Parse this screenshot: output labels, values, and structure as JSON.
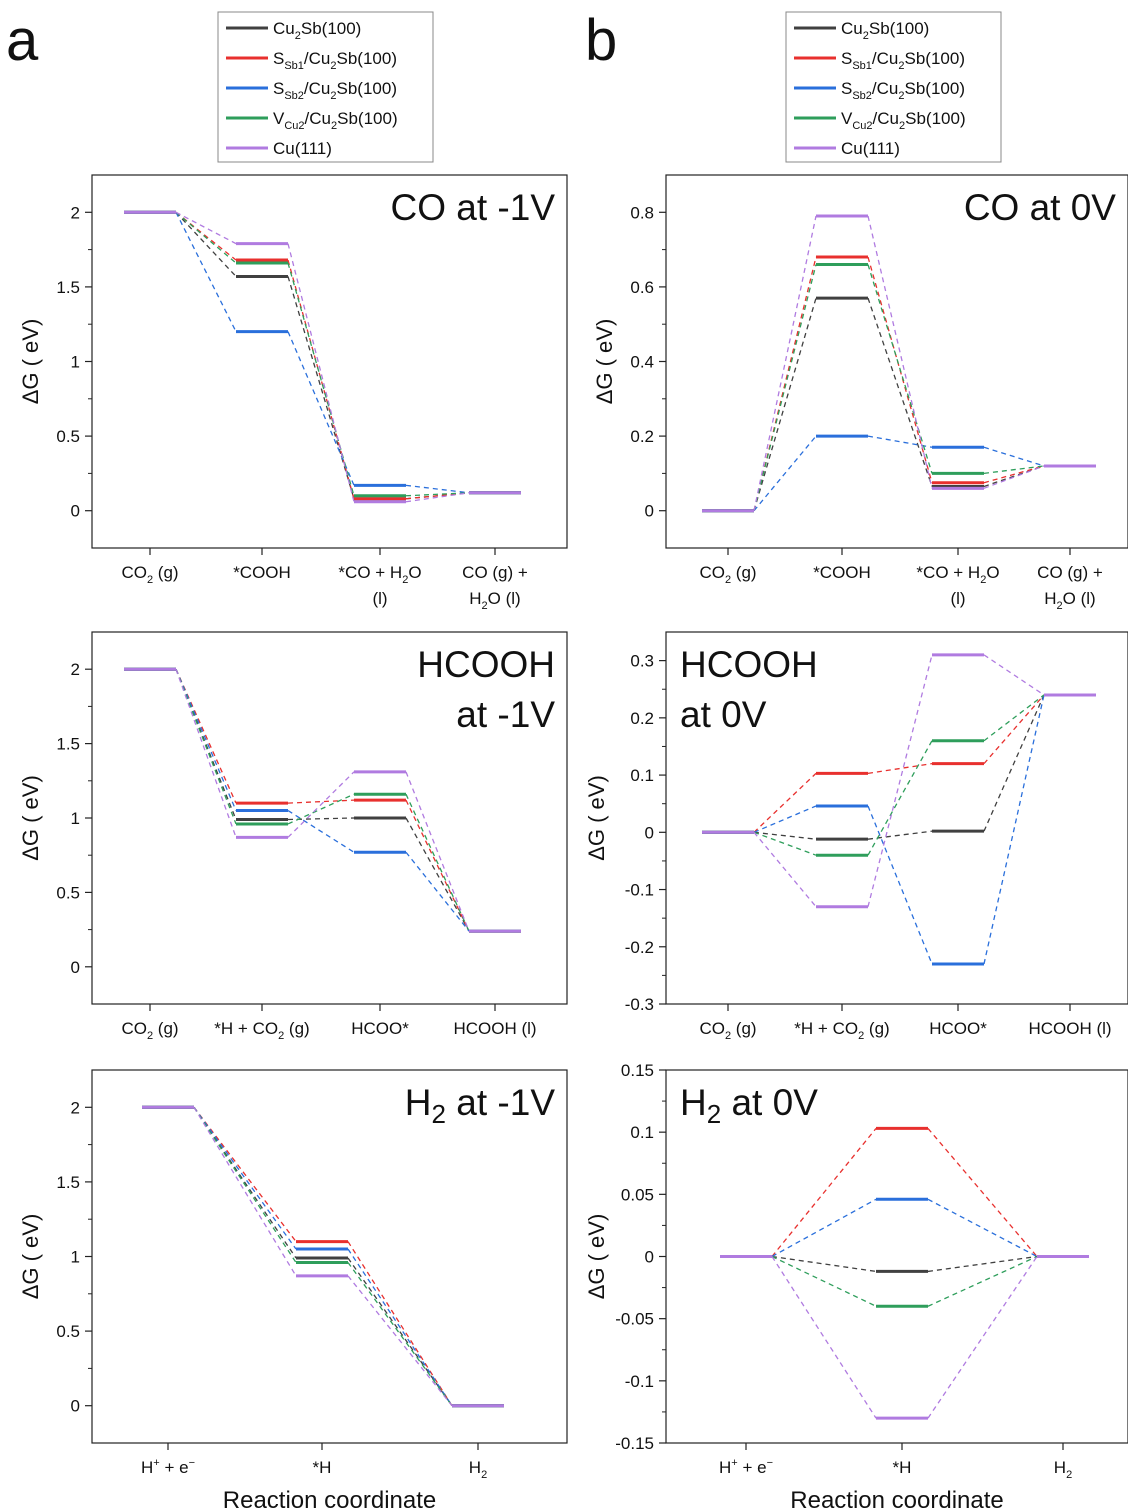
{
  "panel_letters": [
    "a",
    "b"
  ],
  "legend": [
    {
      "html": "Cu<tspan class='sub' dy='5'>2</tspan><tspan dy='-5'>Sb(100)</tspan>",
      "color": "#404040"
    },
    {
      "html": "S<tspan class='sub' dy='5'>Sb1</tspan><tspan dy='-5'>/Cu</tspan><tspan class='sub' dy='5'>2</tspan><tspan dy='-5'>Sb(100)</tspan>",
      "color": "#e8302e"
    },
    {
      "html": "S<tspan class='sub' dy='5'>Sb2</tspan><tspan dy='-5'>/Cu</tspan><tspan class='sub' dy='5'>2</tspan><tspan dy='-5'>Sb(100)</tspan>",
      "color": "#2a6fdb"
    },
    {
      "html": "V<tspan class='sub' dy='5'>Cu2</tspan><tspan dy='-5'>/Cu</tspan><tspan class='sub' dy='5'>2</tspan><tspan dy='-5'>Sb(100)</tspan>",
      "color": "#2e9e5b"
    },
    {
      "html": "Cu(111)",
      "color": "#b07be0"
    }
  ],
  "chart_data": [
    {
      "type": "line",
      "title_lines": [
        "CO at -1V"
      ],
      "ylabel": "ΔG ( eV)",
      "xlabel": "",
      "ylim": [
        -0.25,
        2.25
      ],
      "yticks": [
        0,
        0.5,
        1,
        1.5,
        2
      ],
      "ytick_labels": [
        "0",
        "0.5",
        "1",
        "1.5",
        "2"
      ],
      "categories": [
        [
          "CO<tspan class='sub' dy='5'>2</tspan><tspan dy='-5'> (g)</tspan>"
        ],
        [
          "*COOH"
        ],
        [
          "*CO + H<tspan class='sub' dy='5'>2</tspan><tspan dy='-5'>O</tspan>",
          "(l)"
        ],
        [
          "CO (g) +",
          "H<tspan class='sub' dy='5'>2</tspan><tspan dy='-5'>O (l)</tspan>"
        ]
      ],
      "series": [
        {
          "values": [
            2.0,
            1.57,
            0.08,
            0.12
          ]
        },
        {
          "values": [
            2.0,
            1.68,
            0.08,
            0.12
          ]
        },
        {
          "values": [
            2.0,
            1.2,
            0.17,
            0.12
          ]
        },
        {
          "values": [
            2.0,
            1.66,
            0.1,
            0.12
          ]
        },
        {
          "values": [
            2.0,
            1.79,
            0.06,
            0.12
          ]
        }
      ]
    },
    {
      "type": "line",
      "title_lines": [
        "CO at 0V"
      ],
      "ylabel": "ΔG ( eV)",
      "xlabel": "",
      "ylim": [
        -0.1,
        0.9
      ],
      "yticks": [
        0,
        0.2,
        0.4,
        0.6,
        0.8
      ],
      "ytick_labels": [
        "0",
        "0.2",
        "0.4",
        "0.6",
        "0.8"
      ],
      "categories": [
        [
          "CO<tspan class='sub' dy='5'>2</tspan><tspan dy='-5'> (g)</tspan>"
        ],
        [
          "*COOH"
        ],
        [
          "*CO + H<tspan class='sub' dy='5'>2</tspan><tspan dy='-5'>O</tspan>",
          "(l)"
        ],
        [
          "CO (g) +",
          "H<tspan class='sub' dy='5'>2</tspan><tspan dy='-5'>O (l)</tspan>"
        ]
      ],
      "series": [
        {
          "values": [
            0,
            0.57,
            0.065,
            0.12
          ]
        },
        {
          "values": [
            0,
            0.68,
            0.075,
            0.12
          ]
        },
        {
          "values": [
            0,
            0.2,
            0.17,
            0.12
          ]
        },
        {
          "values": [
            0,
            0.66,
            0.1,
            0.12
          ]
        },
        {
          "values": [
            0,
            0.79,
            0.06,
            0.12
          ]
        }
      ]
    },
    {
      "type": "line",
      "title_lines": [
        "HCOOH",
        "at -1V"
      ],
      "ylabel": "ΔG ( eV)",
      "xlabel": "",
      "ylim": [
        -0.25,
        2.25
      ],
      "yticks": [
        0,
        0.5,
        1,
        1.5,
        2
      ],
      "ytick_labels": [
        "0",
        "0.5",
        "1",
        "1.5",
        "2"
      ],
      "categories": [
        [
          "CO<tspan class='sub' dy='5'>2</tspan><tspan dy='-5'> (g)</tspan>"
        ],
        [
          "*H + CO<tspan class='sub' dy='5'>2</tspan><tspan dy='-5'> (g)</tspan>"
        ],
        [
          "HCOO*"
        ],
        [
          "HCOOH (l)"
        ]
      ],
      "series": [
        {
          "values": [
            2.0,
            0.99,
            1.0,
            0.24
          ]
        },
        {
          "values": [
            2.0,
            1.1,
            1.12,
            0.24
          ]
        },
        {
          "values": [
            2.0,
            1.05,
            0.77,
            0.24
          ]
        },
        {
          "values": [
            2.0,
            0.96,
            1.16,
            0.24
          ]
        },
        {
          "values": [
            2.0,
            0.87,
            1.31,
            0.24
          ]
        }
      ]
    },
    {
      "type": "line",
      "title_lines": [
        "HCOOH",
        "at 0V"
      ],
      "ylabel": "ΔG ( eV)",
      "xlabel": "",
      "ylim": [
        -0.3,
        0.35
      ],
      "yticks": [
        -0.3,
        -0.2,
        -0.1,
        0,
        0.1,
        0.2,
        0.3
      ],
      "ytick_labels": [
        "-0.3",
        "-0.2",
        "-0.1",
        "0",
        "0.1",
        "0.2",
        "0.3"
      ],
      "categories": [
        [
          "CO<tspan class='sub' dy='5'>2</tspan><tspan dy='-5'> (g)</tspan>"
        ],
        [
          "*H + CO<tspan class='sub' dy='5'>2</tspan><tspan dy='-5'> (g)</tspan>"
        ],
        [
          "HCOO*"
        ],
        [
          "HCOOH (l)"
        ]
      ],
      "series": [
        {
          "values": [
            0,
            -0.012,
            0.002,
            0.24
          ]
        },
        {
          "values": [
            0,
            0.103,
            0.12,
            0.24
          ]
        },
        {
          "values": [
            0,
            0.046,
            -0.23,
            0.24
          ]
        },
        {
          "values": [
            0,
            -0.04,
            0.16,
            0.24
          ]
        },
        {
          "values": [
            0,
            -0.13,
            0.31,
            0.24
          ]
        }
      ]
    },
    {
      "type": "line",
      "title_lines": [
        "H<tspan class='sub2' dy='8' font-size='26'>2</tspan><tspan dy='-8'> at -1V</tspan>"
      ],
      "ylabel": "ΔG ( eV)",
      "xlabel": "Reaction coordinate",
      "ylim": [
        -0.25,
        2.25
      ],
      "yticks": [
        0,
        0.5,
        1,
        1.5,
        2
      ],
      "ytick_labels": [
        "0",
        "0.5",
        "1",
        "1.5",
        "2"
      ],
      "categories": [
        [
          "H<tspan class='sub' dy='-7'>+</tspan><tspan dy='7'> + e</tspan><tspan class='sub' dy='-7'>−</tspan>"
        ],
        [
          "*H"
        ],
        [
          "H<tspan class='sub' dy='5'>2</tspan>"
        ]
      ],
      "series": [
        {
          "values": [
            2.0,
            0.99,
            0
          ]
        },
        {
          "values": [
            2.0,
            1.1,
            0
          ]
        },
        {
          "values": [
            2.0,
            1.05,
            0
          ]
        },
        {
          "values": [
            2.0,
            0.96,
            0
          ]
        },
        {
          "values": [
            2.0,
            0.87,
            0
          ]
        }
      ]
    },
    {
      "type": "line",
      "title_lines": [
        "H<tspan class='sub2' dy='8' font-size='26'>2</tspan><tspan dy='-8'> at 0V</tspan>"
      ],
      "ylabel": "ΔG ( eV)",
      "xlabel": "Reaction coordinate",
      "ylim": [
        -0.15,
        0.15
      ],
      "yticks": [
        -0.15,
        -0.1,
        -0.05,
        0,
        0.05,
        0.1,
        0.15
      ],
      "ytick_labels": [
        "-0.15",
        "-0.1",
        "-0.05",
        "0",
        "0.05",
        "0.1",
        "0.15"
      ],
      "categories": [
        [
          "H<tspan class='sub' dy='-7'>+</tspan><tspan dy='7'> + e</tspan><tspan class='sub' dy='-7'>−</tspan>"
        ],
        [
          "*H"
        ],
        [
          "H<tspan class='sub' dy='5'>2</tspan>"
        ]
      ],
      "series": [
        {
          "values": [
            0,
            -0.012,
            0
          ]
        },
        {
          "values": [
            0,
            0.103,
            0
          ]
        },
        {
          "values": [
            0,
            0.046,
            0
          ]
        },
        {
          "values": [
            0,
            -0.04,
            0
          ]
        },
        {
          "values": [
            0,
            -0.13,
            0
          ]
        }
      ]
    }
  ]
}
